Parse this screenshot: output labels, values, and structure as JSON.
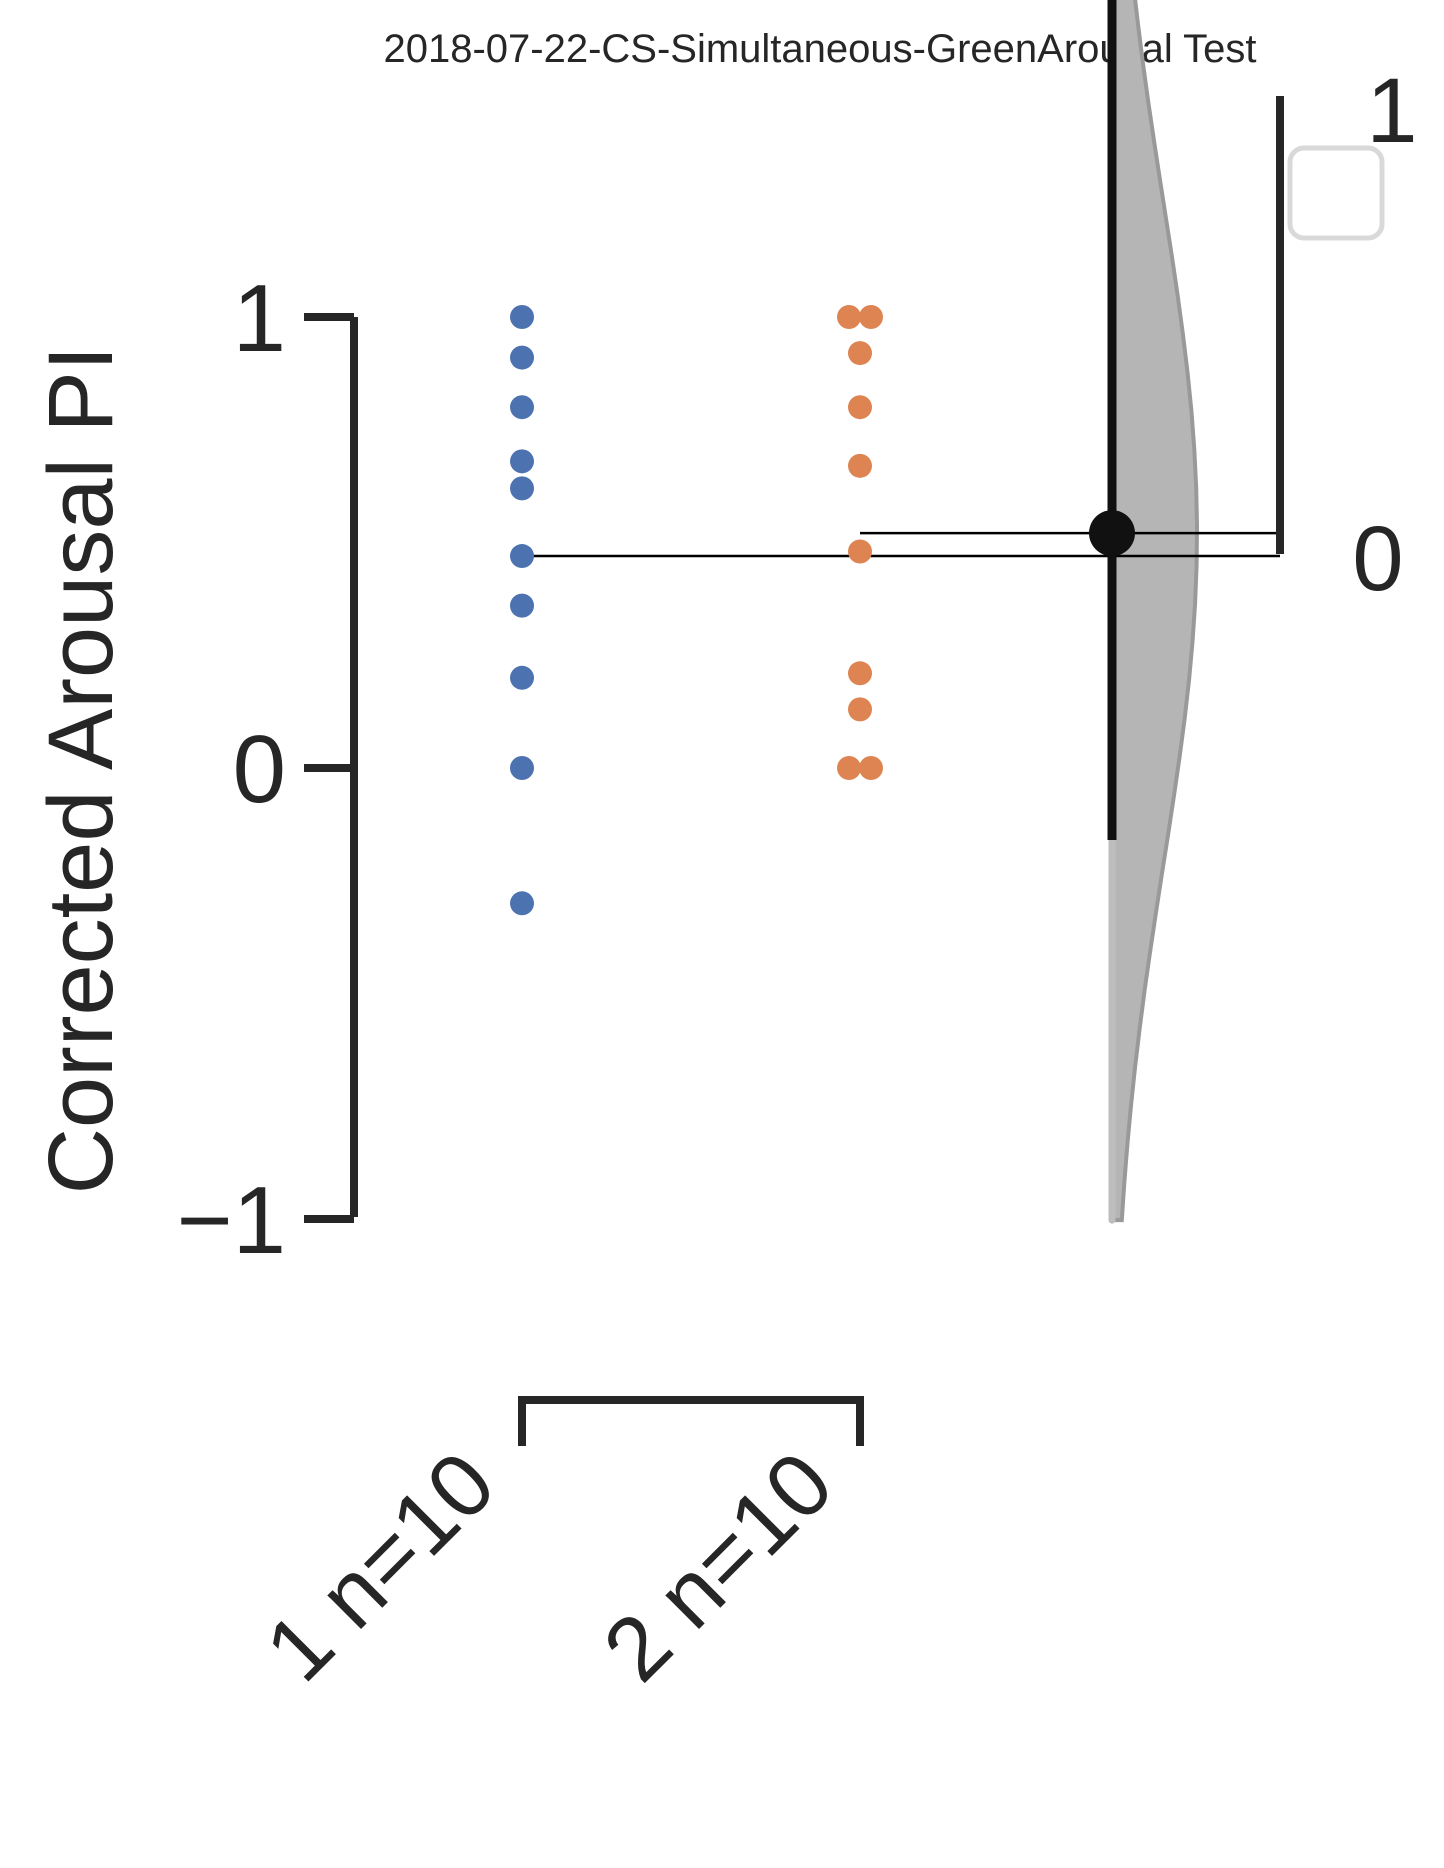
{
  "chart_data": {
    "type": "scatter",
    "title": "2018-07-22-CS-Simultaneous-GreenArousal Test",
    "ylabel": "Corrected Arousal PI",
    "xlabel": "",
    "ylim": [
      -1,
      1
    ],
    "yticks": [
      -1,
      0,
      1
    ],
    "categories": [
      "1 n=10",
      "2 n=10"
    ],
    "series": [
      {
        "category": "1 n=10",
        "color": "#4c72b0",
        "values": [
          1.0,
          0.91,
          0.8,
          0.68,
          0.62,
          0.47,
          0.36,
          0.2,
          0.0,
          -0.3
        ]
      },
      {
        "category": "2 n=10",
        "color": "#dd8452",
        "values": [
          1.0,
          1.0,
          0.92,
          0.8,
          0.67,
          0.48,
          0.21,
          0.13,
          0.0,
          0.0
        ]
      }
    ],
    "group_means": [
      0.47,
      0.52
    ],
    "effect_size": {
      "mean_difference": 0.05,
      "ci": [
        -0.62,
        1.3
      ],
      "bootstrap_range": [
        -1.45,
        3.6
      ],
      "axis_ticks": [
        0,
        1
      ],
      "axis_range": [
        0,
        1
      ]
    },
    "legend": {
      "placement": "top-right",
      "entries": []
    },
    "colors": {
      "axis": "#262626",
      "distribution": "#b5b5b5",
      "distribution_edge": "#999999"
    }
  }
}
